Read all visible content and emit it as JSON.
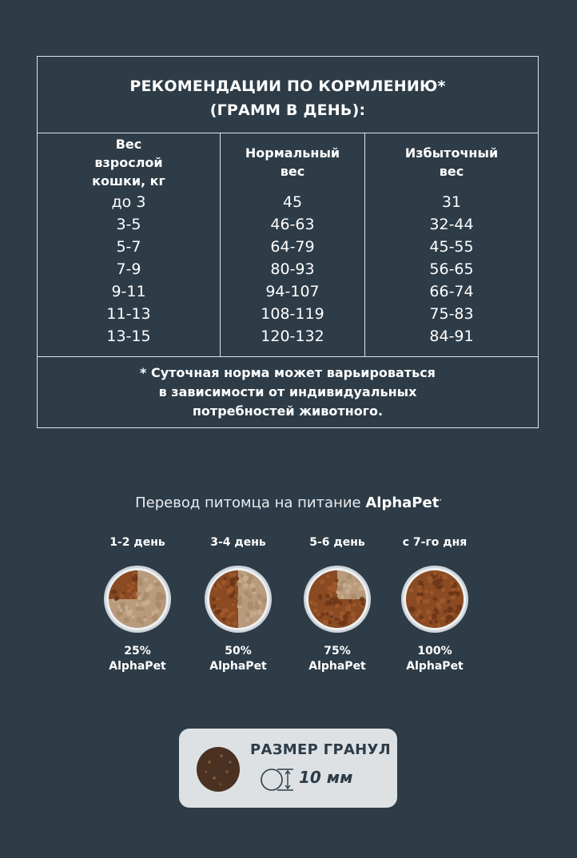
{
  "feeding_table": {
    "title_line1": "РЕКОМЕНДАЦИИ ПО КОРМЛЕНИЮ*",
    "title_line2": "(ГРАММ В ДЕНЬ):",
    "columns": [
      {
        "header": [
          "Вес",
          "взрослой",
          "кошки, кг"
        ],
        "values": [
          "до 3",
          "3-5",
          "5-7",
          "7-9",
          "9-11",
          "11-13",
          "13-15"
        ]
      },
      {
        "header": [
          "Нормальный",
          "вес"
        ],
        "values": [
          "45",
          "46-63",
          "64-79",
          "80-93",
          "94-107",
          "108-119",
          "120-132"
        ]
      },
      {
        "header": [
          "Избыточный",
          "вес"
        ],
        "values": [
          "31",
          "32-44",
          "45-55",
          "56-65",
          "66-74",
          "75-83",
          "84-91"
        ]
      }
    ],
    "note_lines": [
      "* Суточная норма может варьироваться",
      "в зависимости от индивидуальных",
      "потребностей животного."
    ]
  },
  "transition": {
    "title": "Перевод питомца на питание",
    "brand": "AlphaPet",
    "steps": [
      {
        "day": "1-2 день",
        "percent": "25%",
        "brand": "AlphaPet",
        "fill": 0.25
      },
      {
        "day": "3-4 день",
        "percent": "50%",
        "brand": "AlphaPet",
        "fill": 0.5
      },
      {
        "day": "5-6 день",
        "percent": "75%",
        "brand": "AlphaPet",
        "fill": 0.75
      },
      {
        "day": "с 7-го дня",
        "percent": "100%",
        "brand": "AlphaPet",
        "fill": 1.0
      }
    ]
  },
  "granule": {
    "title": "РАЗМЕР ГРАНУЛ",
    "size": "10 мм",
    "icon": "granule-size-icon"
  },
  "colors": {
    "background": "#2d3c47",
    "line": "#dfe4e8",
    "kibble": "#8a4a22",
    "old_food": "#b89a7c",
    "box": "#dde1e4"
  }
}
